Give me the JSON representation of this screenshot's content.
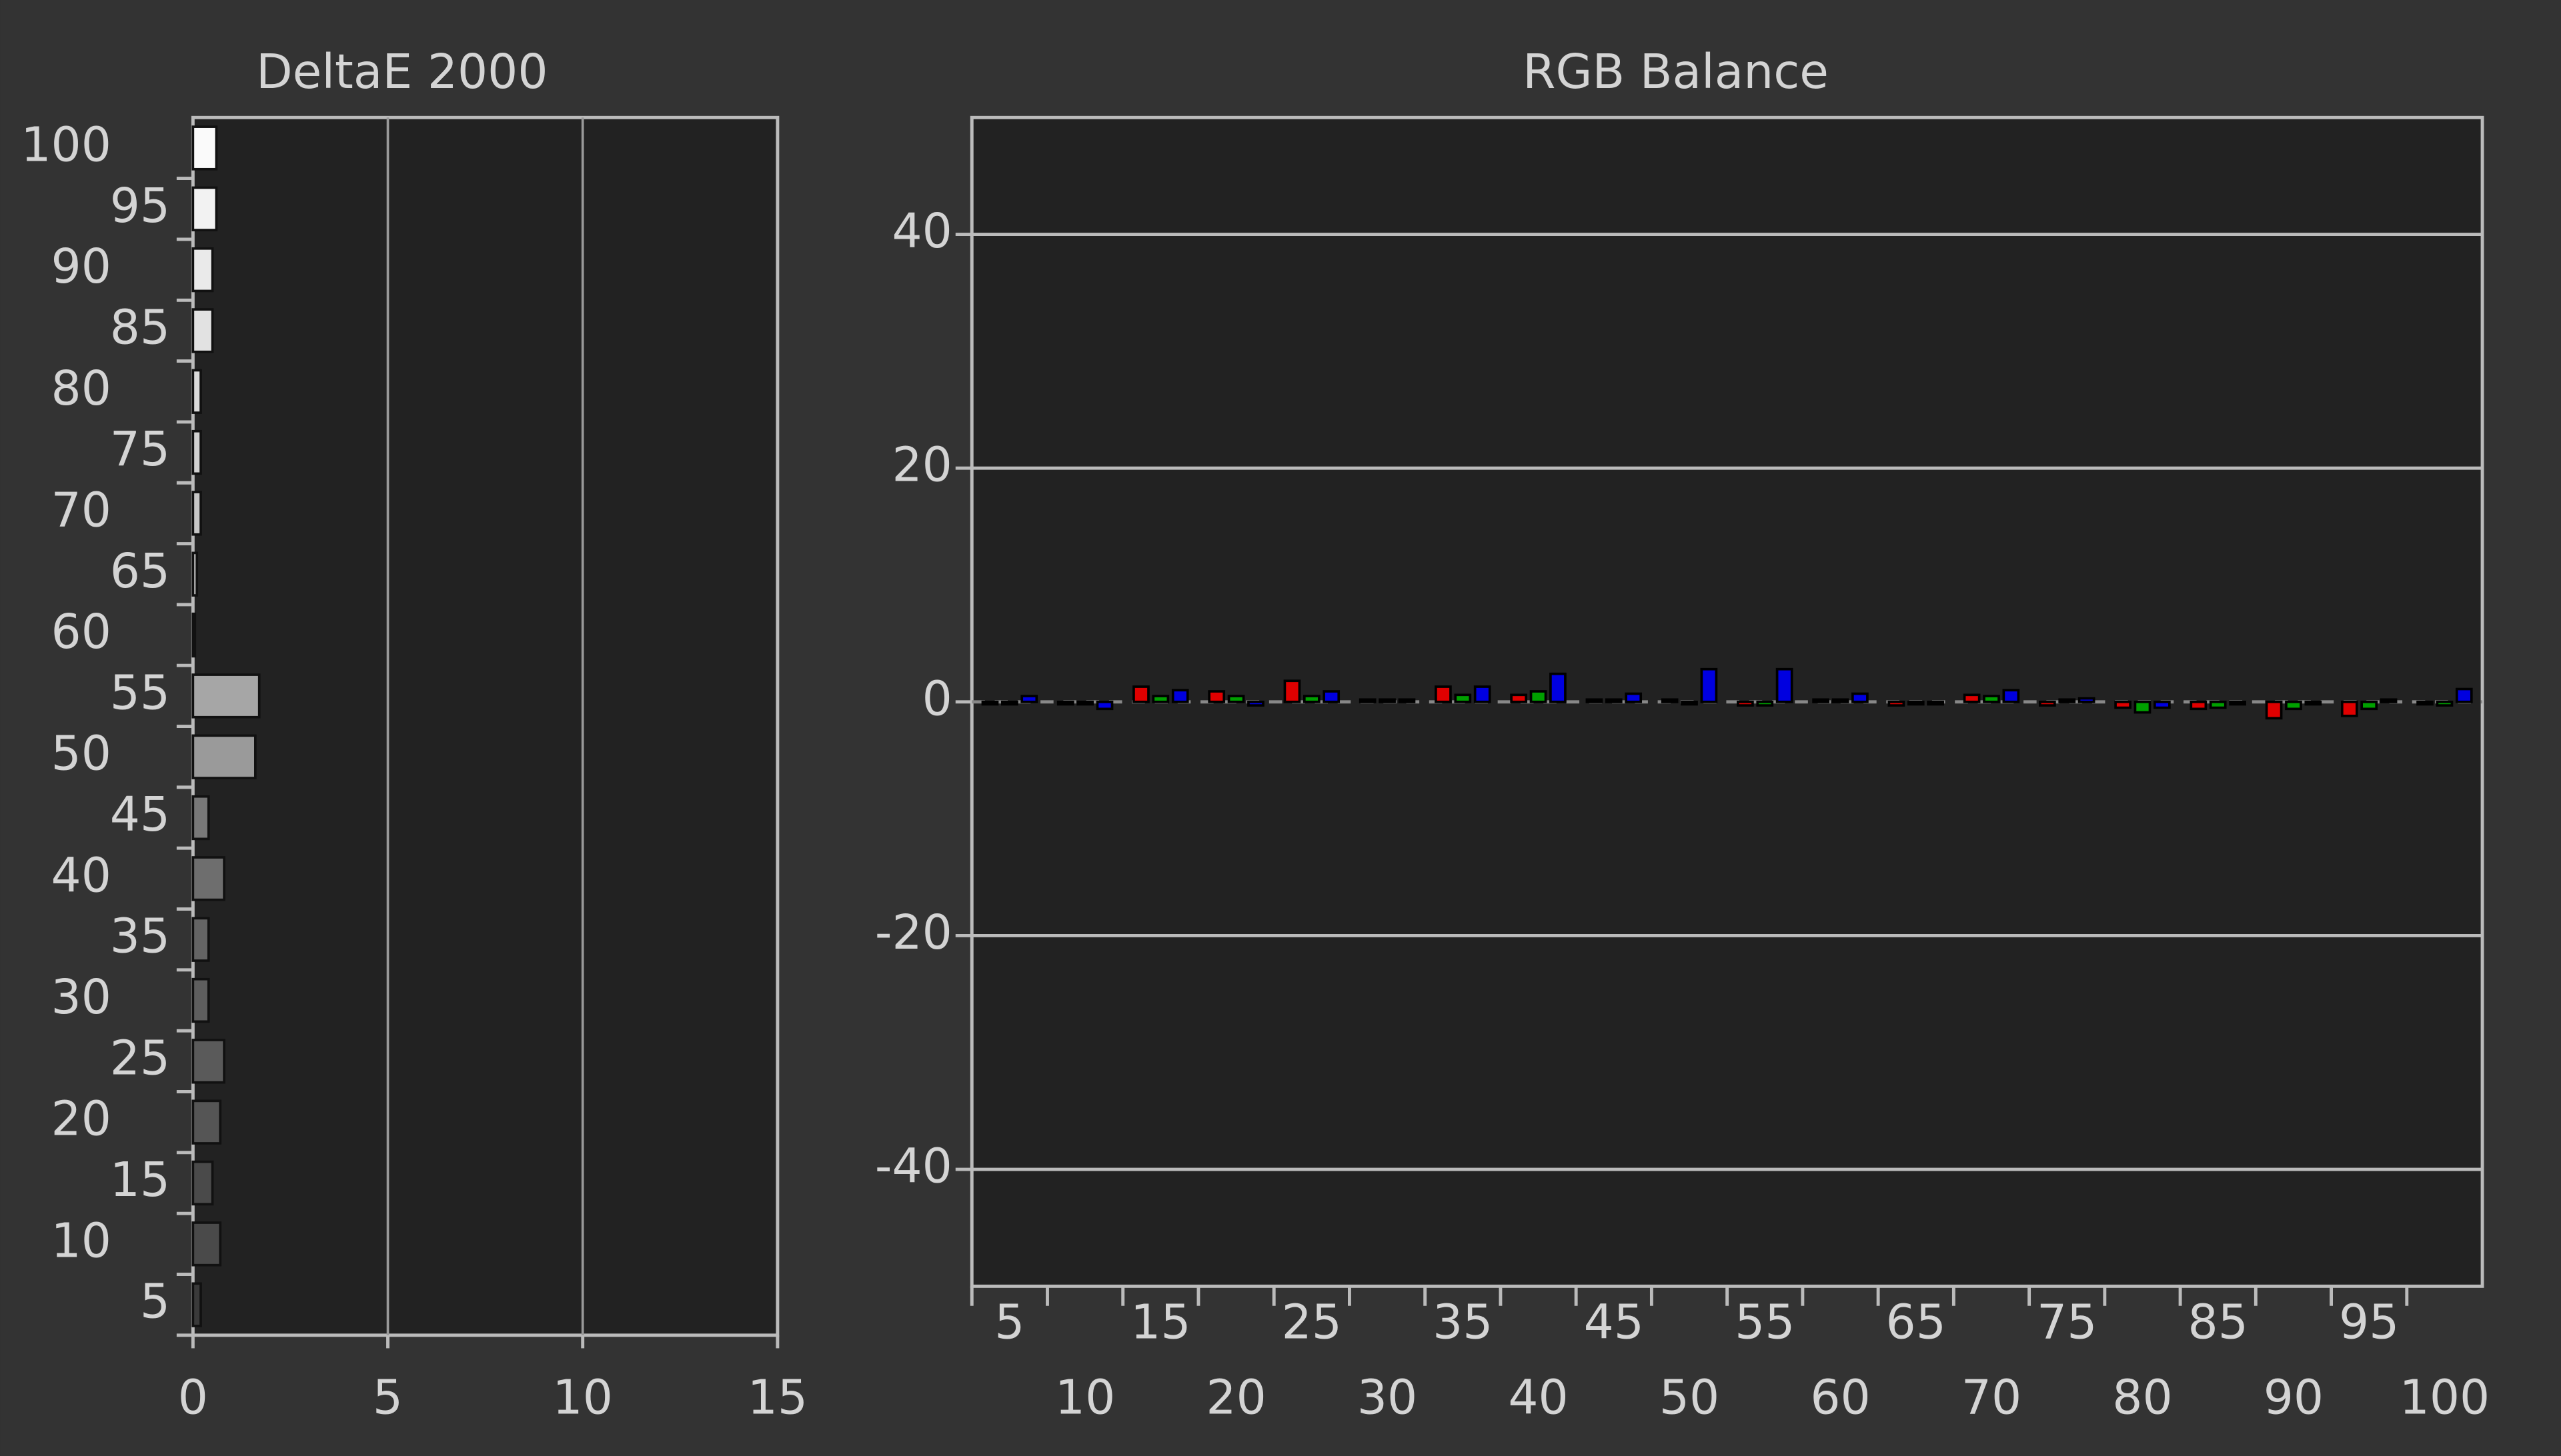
{
  "chart_data": [
    {
      "type": "hbar",
      "title": "DeltaE 2000",
      "categories": [
        5,
        10,
        15,
        20,
        25,
        30,
        35,
        40,
        45,
        50,
        55,
        60,
        65,
        70,
        75,
        80,
        85,
        90,
        95,
        100
      ],
      "values": [
        0.2,
        0.7,
        0.5,
        0.7,
        0.8,
        0.4,
        0.4,
        0.8,
        0.4,
        1.6,
        1.7,
        0.05,
        0.1,
        0.2,
        0.2,
        0.2,
        0.5,
        0.5,
        0.6,
        0.6
      ],
      "colors": [
        "#3a3a3a",
        "#4a4a4a",
        "#4a4a4a",
        "#555555",
        "#5a5a5a",
        "#5e5e5e",
        "#646464",
        "#6e6e6e",
        "#787878",
        "#9a9a9a",
        "#a6a6a6",
        "#b0b0b0",
        "#bcbcbc",
        "#c6c6c6",
        "#d0d0d0",
        "#dadada",
        "#e2e2e2",
        "#eaeaea",
        "#f2f2f2",
        "#fafafa"
      ],
      "xlim": [
        0,
        15
      ],
      "xticks": [
        0,
        5,
        10,
        15
      ],
      "grid": true
    },
    {
      "type": "grouped-bar",
      "title": "RGB Balance",
      "categories": [
        5,
        10,
        15,
        20,
        25,
        30,
        35,
        40,
        45,
        50,
        55,
        60,
        65,
        70,
        75,
        80,
        85,
        90,
        95,
        100
      ],
      "series": [
        {
          "color": "#e00000",
          "values": [
            0,
            0,
            1.3,
            0.9,
            1.8,
            0.2,
            1.3,
            0.6,
            0.2,
            0.2,
            -0.3,
            0.2,
            -0.3,
            0.6,
            -0.3,
            -0.5,
            -0.6,
            -1.4,
            -1.2,
            0
          ]
        },
        {
          "color": "#00a000",
          "values": [
            0,
            0,
            0.5,
            0.5,
            0.5,
            0.2,
            0.6,
            0.9,
            0.2,
            -0.2,
            -0.3,
            0.2,
            0,
            0.5,
            0.2,
            -0.9,
            -0.5,
            -0.6,
            -0.6,
            -0.3
          ]
        },
        {
          "color": "#0000e0",
          "values": [
            0.5,
            -0.6,
            1.0,
            -0.3,
            0.9,
            0.2,
            1.3,
            2.4,
            0.7,
            2.8,
            2.8,
            0.7,
            0,
            1.0,
            0.3,
            -0.5,
            0,
            0,
            0.2,
            1.1
          ]
        }
      ],
      "ylim": [
        -50,
        50
      ],
      "yticks": [
        -40,
        -20,
        0,
        20,
        40
      ],
      "grid": true
    }
  ]
}
